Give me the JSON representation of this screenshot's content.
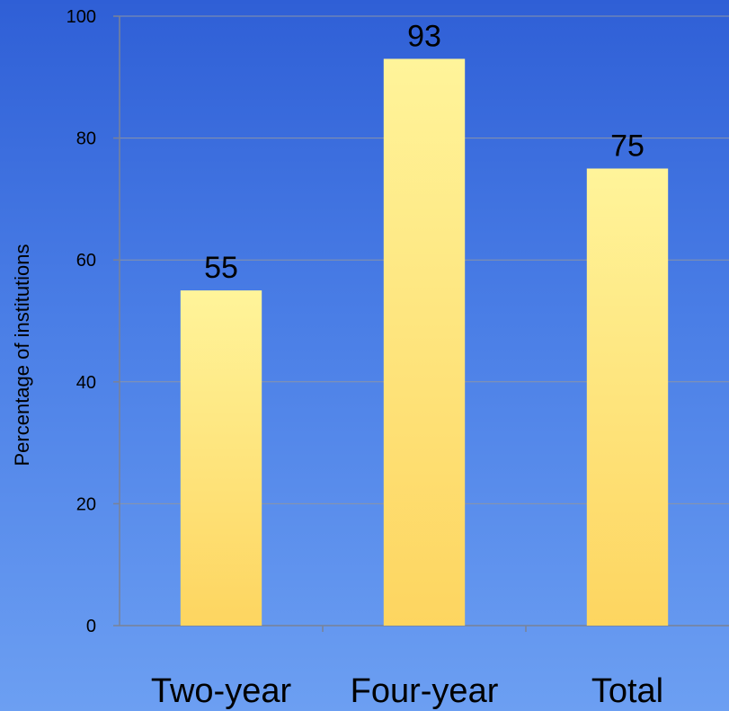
{
  "chart_data": {
    "type": "bar",
    "title": "",
    "xlabel": "",
    "ylabel": "Percentage of institutions",
    "categories": [
      "Two-year",
      "Four-year",
      "Total"
    ],
    "values": [
      55,
      93,
      75
    ],
    "data_labels": [
      "55",
      "93",
      "75"
    ],
    "ylim": [
      0,
      100
    ],
    "yticks": [
      0,
      20,
      40,
      60,
      80,
      100
    ],
    "grid": true,
    "legend": "none",
    "colors": {
      "bar_top": "#fff49a",
      "bar_bottom": "#fdd560",
      "background_top": "#2f5fd6",
      "background_bottom": "#6c9ff2",
      "gridline": "#8a94a8",
      "axis": "#7a8296"
    }
  }
}
